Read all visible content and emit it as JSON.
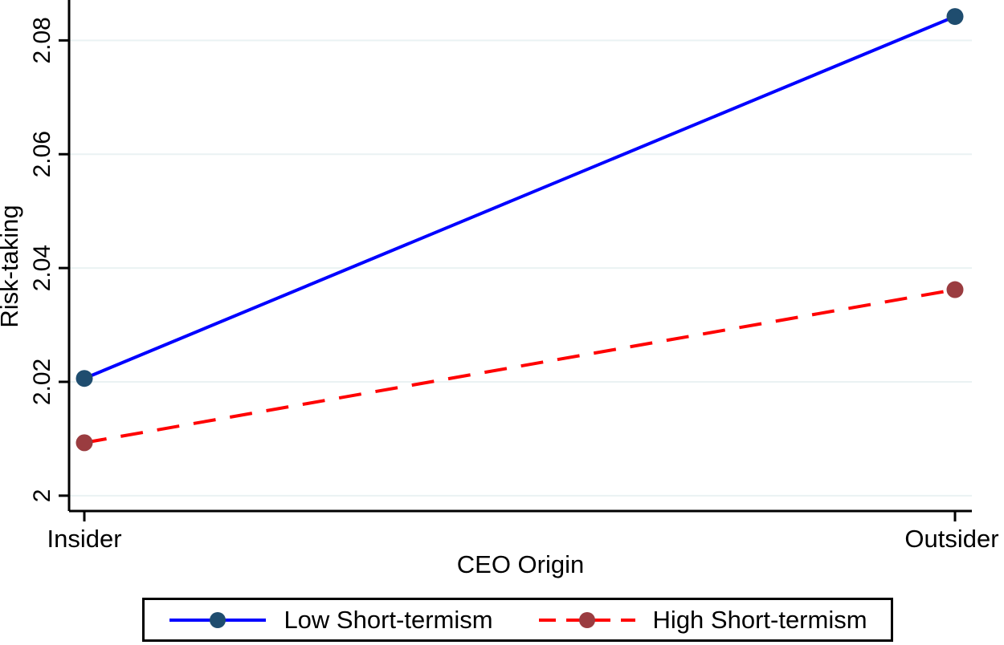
{
  "chart_data": {
    "type": "line",
    "title": "",
    "xlabel": "CEO Origin",
    "ylabel": "Risk-taking",
    "categories": [
      "Insider",
      "Outsider"
    ],
    "series": [
      {
        "name": "Low Short-termism",
        "values": [
          2.0206,
          2.0842
        ],
        "line_color": "#0000ff",
        "marker_color": "#1f4d6f",
        "line_style": "solid",
        "dasharray": "",
        "legend_dasharray": ""
      },
      {
        "name": "High Short-termism",
        "values": [
          2.0093,
          2.0362
        ],
        "line_color": "#ff0000",
        "marker_color": "#9a3c40",
        "line_style": "dashed",
        "dasharray": "28 18",
        "legend_dasharray": "21 13"
      }
    ],
    "ylim": [
      1.9973,
      2.0871
    ],
    "yticks": [
      2,
      2.02,
      2.04,
      2.06,
      2.08
    ],
    "ytick_labels": [
      "2",
      "2.02",
      "2.04",
      "2.06",
      "2.08"
    ],
    "grid": true,
    "legend_position": "bottom",
    "colors": {
      "gridline": "#eaf2f3",
      "axis": "#000000",
      "text": "#000000",
      "background": "#ffffff",
      "legend_border": "#000000"
    }
  }
}
